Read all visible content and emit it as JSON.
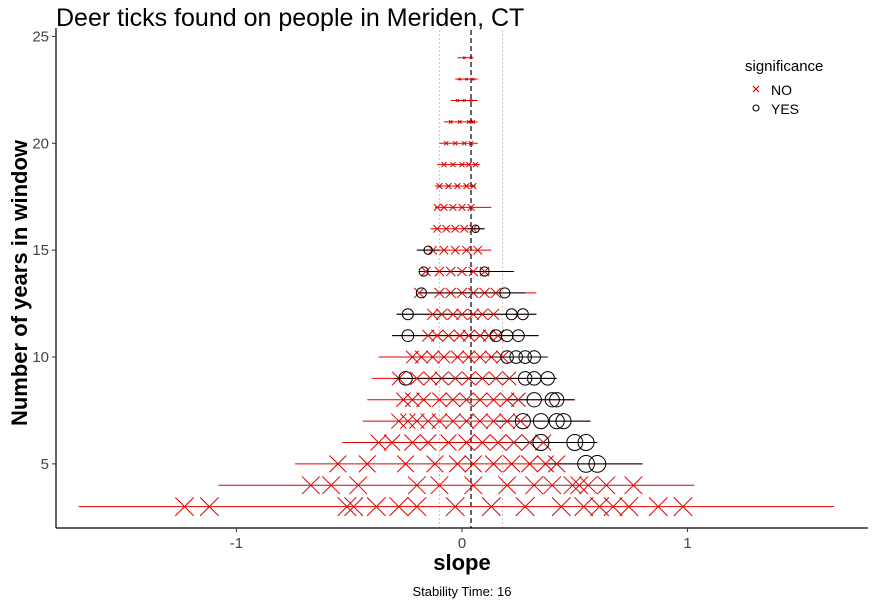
{
  "chart_data": {
    "type": "scatter",
    "title": "Deer ticks found on people in Meriden, CT",
    "xlabel": "slope",
    "ylabel": "Number of years in window",
    "caption": "Stability Time: 16",
    "xlim": [
      -1.8,
      1.8
    ],
    "ylim": [
      2,
      25.3
    ],
    "x_ticks": [
      -1,
      0,
      1
    ],
    "x_tick_labels": [
      "-1",
      "0",
      "1"
    ],
    "y_ticks": [
      5,
      10,
      15,
      20,
      25
    ],
    "y_tick_labels": [
      "5",
      "10",
      "15",
      "20",
      "25"
    ],
    "reference_line": {
      "x": 0.04,
      "style": "dashed"
    },
    "band_lines": [
      -0.1,
      0.18
    ],
    "legend": {
      "title": "significance",
      "position": "top-right",
      "entries": [
        {
          "label": "NO",
          "marker": "x",
          "color": "#e00000"
        },
        {
          "label": "YES",
          "marker": "circle",
          "color": "#000000"
        }
      ]
    },
    "series": [
      {
        "name": "NO",
        "color": "#e00000",
        "marker": "x",
        "points": [
          {
            "y": 3,
            "x": [
              -1.23,
              -1.12,
              -0.51,
              -0.48,
              -0.38,
              -0.28,
              -0.2,
              -0.03,
              0.13,
              0.28,
              0.44,
              0.54,
              0.61,
              0.67,
              0.74,
              0.87,
              0.98
            ],
            "ci": [
              -1.7,
              1.65
            ]
          },
          {
            "y": 4,
            "x": [
              -0.67,
              -0.58,
              -0.46,
              -0.2,
              -0.1,
              0.05,
              0.2,
              0.32,
              0.4,
              0.49,
              0.52,
              0.56,
              0.64,
              0.76
            ],
            "ci": [
              -1.08,
              1.03
            ]
          },
          {
            "y": 5,
            "x": [
              -0.55,
              -0.42,
              -0.25,
              -0.12,
              -0.02,
              0.05,
              0.14,
              0.22,
              0.3,
              0.37,
              0.42
            ],
            "ci": [
              -0.74,
              0.8
            ]
          },
          {
            "y": 6,
            "x": [
              -0.37,
              -0.31,
              -0.22,
              -0.15,
              -0.06,
              0.02,
              0.09,
              0.16,
              0.23,
              0.3,
              0.36
            ],
            "ci": [
              -0.53,
              0.6
            ]
          },
          {
            "y": 7,
            "x": [
              -0.28,
              -0.24,
              -0.2,
              -0.15,
              -0.1,
              -0.04,
              0.02,
              0.08,
              0.14,
              0.2,
              0.26
            ],
            "ci": [
              -0.44,
              0.57
            ]
          },
          {
            "y": 8,
            "x": [
              -0.26,
              -0.22,
              -0.17,
              -0.1,
              -0.04,
              0.02,
              0.08,
              0.14,
              0.2,
              0.25
            ],
            "ci": [
              -0.42,
              0.5
            ]
          },
          {
            "y": 9,
            "x": [
              -0.28,
              -0.2,
              -0.14,
              -0.09,
              -0.03,
              0.03,
              0.09,
              0.15,
              0.21
            ],
            "ci": [
              -0.4,
              0.42
            ]
          },
          {
            "y": 10,
            "x": [
              -0.22,
              -0.18,
              -0.13,
              -0.08,
              -0.02,
              0.03,
              0.08,
              0.13,
              0.18
            ],
            "ci": [
              -0.37,
              0.38
            ]
          },
          {
            "y": 11,
            "x": [
              -0.15,
              -0.11,
              -0.06,
              -0.01,
              0.03,
              0.08,
              0.12,
              0.16
            ],
            "ci": [
              -0.31,
              0.34
            ]
          },
          {
            "y": 12,
            "x": [
              -0.13,
              -0.09,
              -0.04,
              0,
              0.05,
              0.09,
              0.14
            ],
            "ci": [
              -0.29,
              0.33
            ]
          },
          {
            "y": 13,
            "x": [
              -0.19,
              -0.1,
              -0.05,
              0,
              0.05,
              0.1,
              0.15
            ],
            "ci": [
              -0.19,
              0.33
            ]
          },
          {
            "y": 14,
            "x": [
              -0.16,
              -0.1,
              -0.05,
              0,
              0.05,
              0.1
            ],
            "ci": [
              -0.19,
              0.23
            ]
          },
          {
            "y": 15,
            "x": [
              -0.13,
              -0.08,
              -0.03,
              0.02,
              0.07
            ],
            "ci": [
              -0.2,
              0.13
            ]
          },
          {
            "y": 16,
            "x": [
              -0.11,
              -0.07,
              -0.03,
              0.01,
              0.05
            ],
            "ci": [
              -0.14,
              0.1
            ]
          },
          {
            "y": 17,
            "x": [
              -0.11,
              -0.08,
              -0.04,
              0,
              0.04
            ],
            "ci": [
              -0.12,
              0.13
            ]
          },
          {
            "y": 18,
            "x": [
              -0.1,
              -0.06,
              -0.02,
              0.02,
              0.05
            ],
            "ci": [
              -0.12,
              0.06
            ]
          },
          {
            "y": 19,
            "x": [
              -0.08,
              -0.04,
              0,
              0.03,
              0.06
            ],
            "ci": [
              -0.11,
              0.08
            ]
          },
          {
            "y": 20,
            "x": [
              -0.07,
              -0.03,
              0.01,
              0.04
            ],
            "ci": [
              -0.1,
              0.07
            ]
          },
          {
            "y": 21,
            "x": [
              -0.05,
              -0.01,
              0.03,
              0.05
            ],
            "ci": [
              -0.08,
              0.07
            ]
          },
          {
            "y": 22,
            "x": [
              -0.02,
              0.01,
              0.04
            ],
            "ci": [
              -0.05,
              0.07
            ]
          },
          {
            "y": 23,
            "x": [
              -0.01,
              0.02,
              0.05
            ],
            "ci": [
              -0.03,
              0.07
            ]
          },
          {
            "y": 24,
            "x": [
              0.01,
              0.04
            ],
            "ci": [
              -0.02,
              0.05
            ]
          }
        ]
      },
      {
        "name": "YES",
        "color": "#000000",
        "marker": "circle",
        "points": [
          {
            "y": 5,
            "x": [
              0.55,
              0.6
            ],
            "ci": [
              0.38,
              0.8
            ]
          },
          {
            "y": 6,
            "x": [
              0.35,
              0.5,
              0.55
            ],
            "ci": [
              0.22,
              0.6
            ]
          },
          {
            "y": 7,
            "x": [
              0.27,
              0.35,
              0.42,
              0.45
            ],
            "ci": [
              0.15,
              0.57
            ]
          },
          {
            "y": 8,
            "x": [
              0.32,
              0.4,
              0.42
            ],
            "ci": [
              0.2,
              0.5
            ]
          },
          {
            "y": 9,
            "x": [
              -0.25,
              0.28,
              0.32,
              0.38
            ],
            "ci": [
              -0.3,
              0.42
            ]
          },
          {
            "y": 10,
            "x": [
              0.2,
              0.24,
              0.28,
              0.32
            ],
            "ci": [
              0.12,
              0.38
            ]
          },
          {
            "y": 11,
            "x": [
              -0.24,
              0.15,
              0.2,
              0.25
            ],
            "ci": [
              -0.31,
              0.34
            ]
          },
          {
            "y": 12,
            "x": [
              -0.24,
              0.22,
              0.27
            ],
            "ci": [
              -0.29,
              0.33
            ]
          },
          {
            "y": 13,
            "x": [
              -0.18,
              0.19
            ],
            "ci": [
              -0.19,
              0.28
            ]
          },
          {
            "y": 14,
            "x": [
              -0.17,
              0.1
            ],
            "ci": [
              -0.19,
              0.23
            ]
          },
          {
            "y": 15,
            "x": [
              -0.15
            ],
            "ci": [
              -0.2,
              -0.1
            ]
          },
          {
            "y": 16,
            "x": [
              0.06
            ],
            "ci": [
              0.02,
              0.1
            ]
          }
        ]
      }
    ]
  }
}
